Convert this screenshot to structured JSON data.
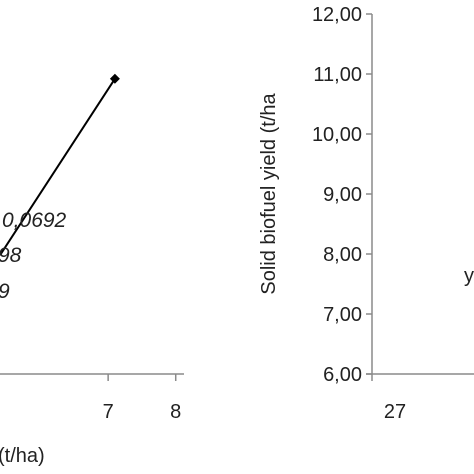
{
  "chart_data": [
    {
      "type": "scatter",
      "panel": "left (cropped)",
      "xlabel_visible": "(t/ha)",
      "xticks": [
        "7",
        "8"
      ],
      "xlim": [
        5.4,
        8.3
      ],
      "ylim": [
        0,
        1
      ],
      "series": [
        {
          "points": [
            {
              "x": 5.4,
              "y": 0.33
            },
            {
              "x": 7.1,
              "y": 0.82
            }
          ],
          "marker": "diamond",
          "color": "#000000"
        }
      ],
      "annotations": [
        "0,0692",
        "98",
        "9"
      ],
      "grid": false
    },
    {
      "type": "scatter",
      "panel": "right (cropped)",
      "ylabel": "Solid biofuel yield (t/ha",
      "yticks": [
        "12,00",
        "11,00",
        "10,00",
        "9,00",
        "8,00",
        "7,00",
        "6,00"
      ],
      "ylim": [
        6,
        12
      ],
      "xticks": [
        "27"
      ],
      "annotations": [
        "y"
      ],
      "series": [],
      "grid": false
    }
  ]
}
